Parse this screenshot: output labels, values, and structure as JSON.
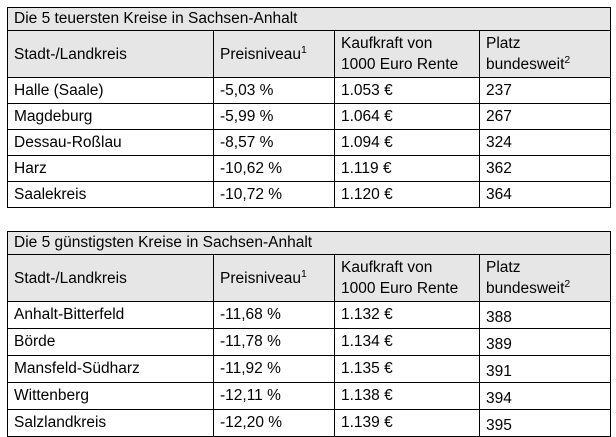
{
  "tables": [
    {
      "title": "Die 5 teuersten Kreise in Sachsen-Anhalt",
      "headers": {
        "district": "Stadt-/Landkreis",
        "price_level": "Preisniveau",
        "price_level_footnote": "1",
        "purchasing_power_line1": "Kaufkraft von",
        "purchasing_power_line2": "1000 Euro Rente",
        "rank_line1": "Platz",
        "rank_line2": "bundesweit",
        "rank_footnote": "2"
      },
      "rows": [
        {
          "district": "Halle (Saale)",
          "price_level": "-5,03 %",
          "purchasing_power": "1.053 €",
          "rank": "237"
        },
        {
          "district": "Magdeburg",
          "price_level": "-5,99 %",
          "purchasing_power": "1.064 €",
          "rank": "267"
        },
        {
          "district": "Dessau-Roßlau",
          "price_level": "-8,57 %",
          "purchasing_power": "1.094 €",
          "rank": "324"
        },
        {
          "district": "Harz",
          "price_level": "-10,62 %",
          "purchasing_power": "1.119 €",
          "rank": "362"
        },
        {
          "district": "Saalekreis",
          "price_level": "-10,72 %",
          "purchasing_power": "1.120 €",
          "rank": "364"
        }
      ]
    },
    {
      "title": "Die 5 günstigsten Kreise in Sachsen-Anhalt",
      "headers": {
        "district": "Stadt-/Landkreis",
        "price_level": "Preisniveau",
        "price_level_footnote": "1",
        "purchasing_power_line1": "Kaufkraft von",
        "purchasing_power_line2": "1000 Euro Rente",
        "rank_line1": "Platz",
        "rank_line2": "bundesweit",
        "rank_footnote": "2"
      },
      "rows": [
        {
          "district": "Anhalt-Bitterfeld",
          "price_level": "-11,68 %",
          "purchasing_power": "1.132 €",
          "rank": "388"
        },
        {
          "district": "Börde",
          "price_level": "-11,78 %",
          "purchasing_power": "1.134 €",
          "rank": "389"
        },
        {
          "district": "Mansfeld-Südharz",
          "price_level": "-11,92 %",
          "purchasing_power": "1.135 €",
          "rank": "391"
        },
        {
          "district": "Wittenberg",
          "price_level": "-12,11 %",
          "purchasing_power": "1.138 €",
          "rank": "394"
        },
        {
          "district": "Salzlandkreis",
          "price_level": "-12,20 %",
          "purchasing_power": "1.139 €",
          "rank": "395"
        }
      ]
    }
  ]
}
